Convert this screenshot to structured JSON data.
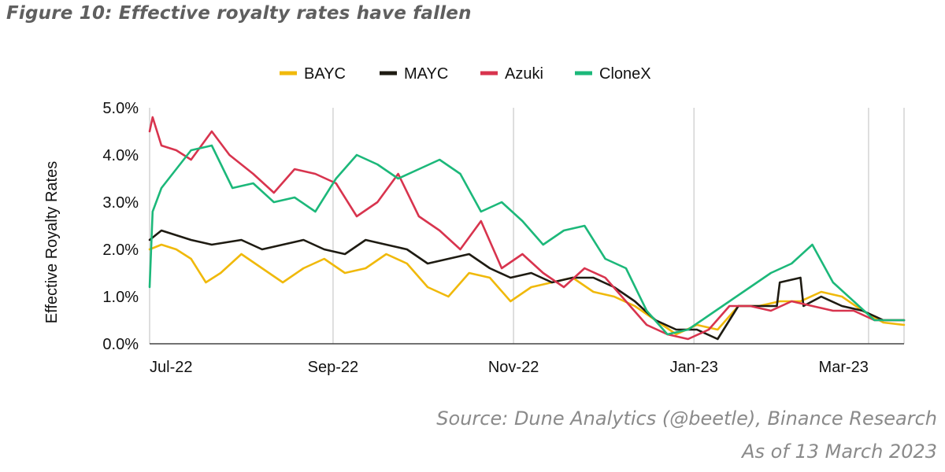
{
  "figure_title": "Figure 10: Effective royalty rates have fallen",
  "source_line": "Source: Dune Analytics (@beetle), Binance Research",
  "asof_line": "As of 13 March 2023",
  "chart_data": {
    "type": "line",
    "ylabel": "Effective Royalty Rates",
    "ylim": [
      0,
      5
    ],
    "yticks": [
      0,
      1,
      2,
      3,
      4,
      5
    ],
    "ytick_labels": [
      "0.0%",
      "1.0%",
      "2.0%",
      "3.0%",
      "4.0%",
      "5.0%"
    ],
    "xlim": [
      "2022-07-01",
      "2023-03-13"
    ],
    "xticks": [
      "2022-07-01",
      "2022-09-01",
      "2022-11-01",
      "2023-01-01",
      "2023-03-01"
    ],
    "xtick_labels": [
      "Jul-22",
      "Sep-22",
      "Nov-22",
      "Jan-23",
      "Mar-23"
    ],
    "grid": "vertical",
    "legend_position": "top",
    "series": [
      {
        "name": "BAYC",
        "color": "#F0B90B",
        "x": [
          "2022-07-01",
          "2022-07-05",
          "2022-07-10",
          "2022-07-15",
          "2022-07-20",
          "2022-07-25",
          "2022-08-01",
          "2022-08-08",
          "2022-08-15",
          "2022-08-22",
          "2022-08-29",
          "2022-09-05",
          "2022-09-12",
          "2022-09-19",
          "2022-09-26",
          "2022-10-03",
          "2022-10-10",
          "2022-10-17",
          "2022-10-24",
          "2022-10-31",
          "2022-11-07",
          "2022-11-14",
          "2022-11-21",
          "2022-11-28",
          "2022-12-05",
          "2022-12-12",
          "2022-12-19",
          "2022-12-26",
          "2023-01-02",
          "2023-01-09",
          "2023-01-16",
          "2023-01-23",
          "2023-01-30",
          "2023-02-06",
          "2023-02-13",
          "2023-02-20",
          "2023-02-27",
          "2023-03-06",
          "2023-03-13"
        ],
        "values": [
          2.0,
          2.1,
          2.0,
          1.8,
          1.3,
          1.5,
          1.9,
          1.6,
          1.3,
          1.6,
          1.8,
          1.5,
          1.6,
          1.9,
          1.7,
          1.2,
          1.0,
          1.5,
          1.4,
          0.9,
          1.2,
          1.3,
          1.4,
          1.1,
          1.0,
          0.8,
          0.5,
          0.2,
          0.4,
          0.3,
          0.8,
          0.8,
          0.9,
          0.9,
          1.1,
          1.0,
          0.7,
          0.45,
          0.4
        ]
      },
      {
        "name": "MAYC",
        "color": "#1E1B12",
        "x": [
          "2022-07-01",
          "2022-07-05",
          "2022-07-10",
          "2022-07-15",
          "2022-07-22",
          "2022-08-01",
          "2022-08-08",
          "2022-08-15",
          "2022-08-22",
          "2022-08-29",
          "2022-09-05",
          "2022-09-12",
          "2022-09-19",
          "2022-09-26",
          "2022-10-03",
          "2022-10-10",
          "2022-10-17",
          "2022-10-24",
          "2022-10-31",
          "2022-11-07",
          "2022-11-14",
          "2022-11-21",
          "2022-11-28",
          "2022-12-05",
          "2022-12-12",
          "2022-12-19",
          "2022-12-26",
          "2023-01-02",
          "2023-01-09",
          "2023-01-16",
          "2023-01-23",
          "2023-01-29",
          "2023-01-30",
          "2023-02-06",
          "2023-02-07",
          "2023-02-13",
          "2023-02-20",
          "2023-02-27",
          "2023-03-06",
          "2023-03-13"
        ],
        "values": [
          2.2,
          2.4,
          2.3,
          2.2,
          2.1,
          2.2,
          2.0,
          2.1,
          2.2,
          2.0,
          1.9,
          2.2,
          2.1,
          2.0,
          1.7,
          1.8,
          1.9,
          1.6,
          1.4,
          1.5,
          1.3,
          1.4,
          1.4,
          1.2,
          0.9,
          0.5,
          0.3,
          0.3,
          0.1,
          0.8,
          0.8,
          0.8,
          1.3,
          1.4,
          0.8,
          1.0,
          0.8,
          0.7,
          0.5,
          0.5
        ]
      },
      {
        "name": "Azuki",
        "color": "#D8344E",
        "x": [
          "2022-07-01",
          "2022-07-02",
          "2022-07-05",
          "2022-07-10",
          "2022-07-15",
          "2022-07-22",
          "2022-07-28",
          "2022-08-05",
          "2022-08-12",
          "2022-08-19",
          "2022-08-26",
          "2022-09-02",
          "2022-09-09",
          "2022-09-16",
          "2022-09-23",
          "2022-09-30",
          "2022-10-07",
          "2022-10-14",
          "2022-10-21",
          "2022-10-28",
          "2022-11-04",
          "2022-11-11",
          "2022-11-18",
          "2022-11-25",
          "2022-12-02",
          "2022-12-09",
          "2022-12-16",
          "2022-12-23",
          "2022-12-30",
          "2023-01-06",
          "2023-01-13",
          "2023-01-20",
          "2023-01-27",
          "2023-02-03",
          "2023-02-10",
          "2023-02-17",
          "2023-02-24",
          "2023-03-03",
          "2023-03-13"
        ],
        "values": [
          4.5,
          4.8,
          4.2,
          4.1,
          3.9,
          4.5,
          4.0,
          3.6,
          3.2,
          3.7,
          3.6,
          3.4,
          2.7,
          3.0,
          3.6,
          2.7,
          2.4,
          2.0,
          2.6,
          1.6,
          1.9,
          1.5,
          1.2,
          1.6,
          1.4,
          0.9,
          0.4,
          0.2,
          0.1,
          0.3,
          0.8,
          0.8,
          0.7,
          0.9,
          0.8,
          0.7,
          0.7,
          0.5,
          0.5
        ]
      },
      {
        "name": "CloneX",
        "color": "#1CB87A",
        "x": [
          "2022-07-01",
          "2022-07-02",
          "2022-07-05",
          "2022-07-10",
          "2022-07-15",
          "2022-07-22",
          "2022-07-29",
          "2022-08-05",
          "2022-08-12",
          "2022-08-19",
          "2022-08-26",
          "2022-09-02",
          "2022-09-09",
          "2022-09-16",
          "2022-09-23",
          "2022-09-30",
          "2022-10-07",
          "2022-10-14",
          "2022-10-21",
          "2022-10-28",
          "2022-11-04",
          "2022-11-11",
          "2022-11-18",
          "2022-11-25",
          "2022-12-02",
          "2022-12-09",
          "2022-12-16",
          "2022-12-23",
          "2022-12-30",
          "2023-01-06",
          "2023-01-13",
          "2023-01-20",
          "2023-01-27",
          "2023-02-03",
          "2023-02-10",
          "2023-02-17",
          "2023-02-24",
          "2023-03-03",
          "2023-03-13"
        ],
        "values": [
          1.2,
          2.8,
          3.3,
          3.7,
          4.1,
          4.2,
          3.3,
          3.4,
          3.0,
          3.1,
          2.8,
          3.5,
          4.0,
          3.8,
          3.5,
          3.7,
          3.9,
          3.6,
          2.8,
          3.0,
          2.6,
          2.1,
          2.4,
          2.5,
          1.8,
          1.6,
          0.7,
          0.2,
          0.3,
          0.6,
          0.9,
          1.2,
          1.5,
          1.7,
          2.1,
          1.3,
          0.9,
          0.5,
          0.5
        ]
      }
    ]
  }
}
